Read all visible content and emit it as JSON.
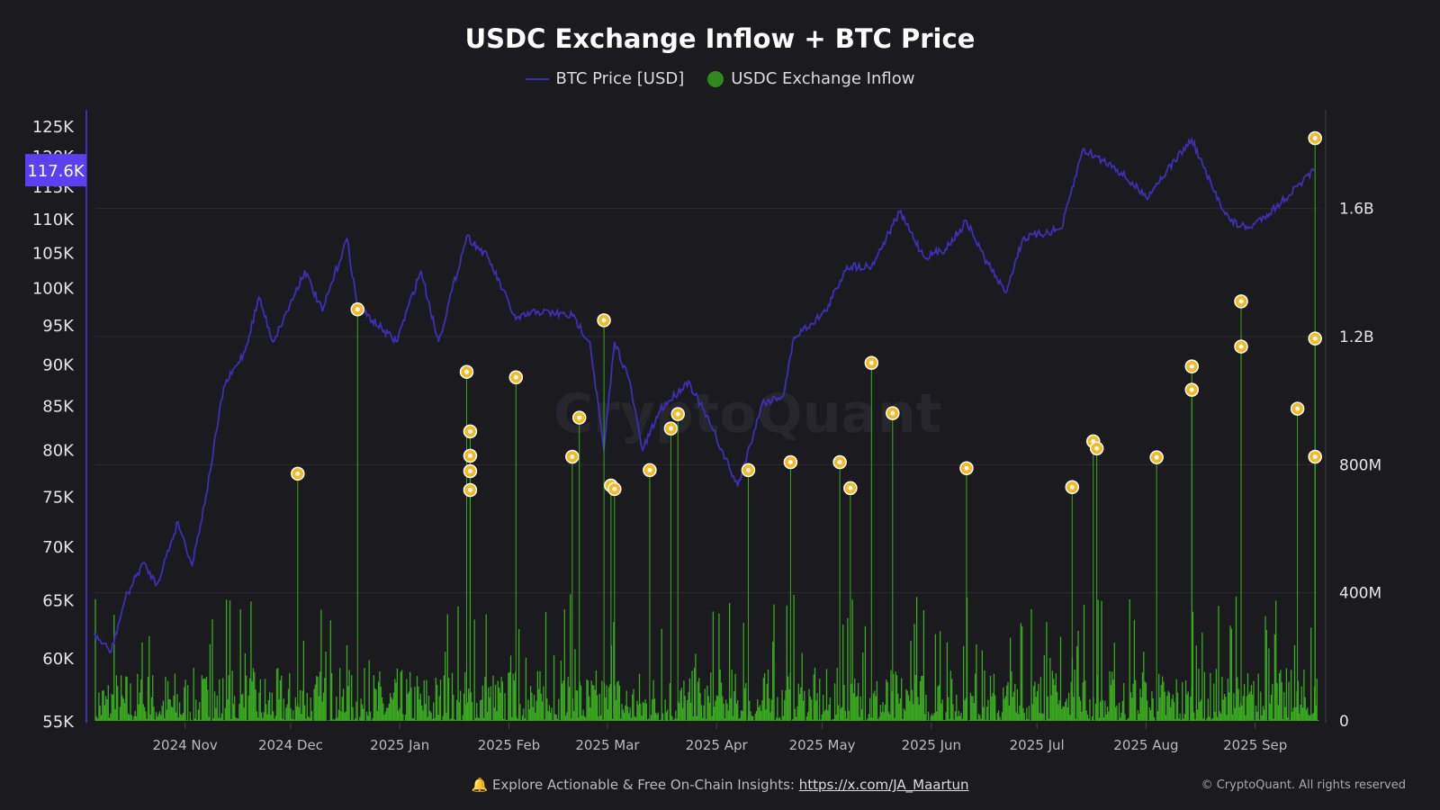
{
  "chart_data": {
    "type": "bar+line",
    "title": "USDC Exchange Inflow + BTC Price",
    "legend": {
      "placement": "top-center",
      "entries": [
        "BTC Price [USD]",
        "USDC Exchange Inflow"
      ]
    },
    "x_ticks": [
      {
        "date": "2024-11-01",
        "label": "2024 Nov"
      },
      {
        "date": "2024-12-01",
        "label": "2024 Dec"
      },
      {
        "date": "2025-01-01",
        "label": "2025 Jan"
      },
      {
        "date": "2025-02-01",
        "label": "2025 Feb"
      },
      {
        "date": "2025-03-01",
        "label": "2025 Mar"
      },
      {
        "date": "2025-04-01",
        "label": "2025 Apr"
      },
      {
        "date": "2025-05-01",
        "label": "2025 May"
      },
      {
        "date": "2025-06-01",
        "label": "2025 Jun"
      },
      {
        "date": "2025-07-01",
        "label": "2025 Jul"
      },
      {
        "date": "2025-08-01",
        "label": "2025 Aug"
      },
      {
        "date": "2025-09-01",
        "label": "2025 Sep"
      }
    ],
    "xlim": [
      "2024-10-05",
      "2025-09-20"
    ],
    "left_axis": {
      "scale": "log",
      "ylim": [
        55000,
        125000
      ],
      "ticks": [
        {
          "v": 55000,
          "label": "55K"
        },
        {
          "v": 60000,
          "label": "60K"
        },
        {
          "v": 65000,
          "label": "65K"
        },
        {
          "v": 70000,
          "label": "70K"
        },
        {
          "v": 75000,
          "label": "75K"
        },
        {
          "v": 80000,
          "label": "80K"
        },
        {
          "v": 85000,
          "label": "85K"
        },
        {
          "v": 90000,
          "label": "90K"
        },
        {
          "v": 95000,
          "label": "95K"
        },
        {
          "v": 100000,
          "label": "100K"
        },
        {
          "v": 105000,
          "label": "105K"
        },
        {
          "v": 110000,
          "label": "110K"
        },
        {
          "v": 115000,
          "label": "115K"
        },
        {
          "v": 120000,
          "label": "120K"
        },
        {
          "v": 125000,
          "label": "125K"
        }
      ],
      "current_value": 117600,
      "current_label": "117.6K"
    },
    "right_axis": {
      "scale": "linear",
      "ylim": [
        0,
        1900000000
      ],
      "ticks": [
        {
          "v": 0,
          "label": "0"
        },
        {
          "v": 400000000,
          "label": "400M"
        },
        {
          "v": 800000000,
          "label": "800M"
        },
        {
          "v": 1200000000,
          "label": "1.2B"
        },
        {
          "v": 1600000000,
          "label": "1.6B"
        }
      ]
    },
    "grid": true,
    "colors": {
      "btc": "#3f2fb5",
      "inflow": "#3aaa1e",
      "marker": "#f5b921",
      "current_badge": "#5b3ff0"
    },
    "btc_price": [
      [
        "2024-10-06",
        62000
      ],
      [
        "2024-10-11",
        60500
      ],
      [
        "2024-10-15",
        65100
      ],
      [
        "2024-10-20",
        68400
      ],
      [
        "2024-10-24",
        66400
      ],
      [
        "2024-10-30",
        72400
      ],
      [
        "2024-11-03",
        68200
      ],
      [
        "2024-11-07",
        75100
      ],
      [
        "2024-11-12",
        87200
      ],
      [
        "2024-11-18",
        91600
      ],
      [
        "2024-11-22",
        98700
      ],
      [
        "2024-11-26",
        92800
      ],
      [
        "2024-11-30",
        96800
      ],
      [
        "2024-12-05",
        102400
      ],
      [
        "2024-12-10",
        96800
      ],
      [
        "2024-12-17",
        107000
      ],
      [
        "2024-12-20",
        97400
      ],
      [
        "2024-12-31",
        92800
      ],
      [
        "2025-01-07",
        102400
      ],
      [
        "2025-01-12",
        92800
      ],
      [
        "2025-01-20",
        107400
      ],
      [
        "2025-01-26",
        104300
      ],
      [
        "2025-02-03",
        95700
      ],
      [
        "2025-02-09",
        96800
      ],
      [
        "2025-02-19",
        96200
      ],
      [
        "2025-02-24",
        92800
      ],
      [
        "2025-02-28",
        79900
      ],
      [
        "2025-03-03",
        92800
      ],
      [
        "2025-03-07",
        88300
      ],
      [
        "2025-03-11",
        79900
      ],
      [
        "2025-03-16",
        84500
      ],
      [
        "2025-03-24",
        87900
      ],
      [
        "2025-03-30",
        83000
      ],
      [
        "2025-04-07",
        76000
      ],
      [
        "2025-04-14",
        85300
      ],
      [
        "2025-04-20",
        86200
      ],
      [
        "2025-04-23",
        93400
      ],
      [
        "2025-05-02",
        96800
      ],
      [
        "2025-05-08",
        103000
      ],
      [
        "2025-05-15",
        103000
      ],
      [
        "2025-05-23",
        111000
      ],
      [
        "2025-05-30",
        104300
      ],
      [
        "2025-06-05",
        105500
      ],
      [
        "2025-06-11",
        109600
      ],
      [
        "2025-06-16",
        104300
      ],
      [
        "2025-06-22",
        99300
      ],
      [
        "2025-06-27",
        107000
      ],
      [
        "2025-07-08",
        108500
      ],
      [
        "2025-07-14",
        121000
      ],
      [
        "2025-07-23",
        118200
      ],
      [
        "2025-08-01",
        113300
      ],
      [
        "2025-08-07",
        117600
      ],
      [
        "2025-08-14",
        122700
      ],
      [
        "2025-08-20",
        114500
      ],
      [
        "2025-08-25",
        109600
      ],
      [
        "2025-08-30",
        108500
      ],
      [
        "2025-09-07",
        111800
      ],
      [
        "2025-09-13",
        115000
      ],
      [
        "2025-09-18",
        117600
      ]
    ],
    "inflow_spikes": [
      [
        "2024-12-03",
        772000000
      ],
      [
        "2024-12-20",
        1285000000
      ],
      [
        "2025-01-20",
        1090000000
      ],
      [
        "2025-01-21",
        904000000
      ],
      [
        "2025-01-21",
        828000000
      ],
      [
        "2025-01-21",
        780000000
      ],
      [
        "2025-01-21",
        721000000
      ],
      [
        "2025-02-03",
        1073000000
      ],
      [
        "2025-02-19",
        825000000
      ],
      [
        "2025-02-21",
        947000000
      ],
      [
        "2025-02-28",
        1251000000
      ],
      [
        "2025-03-02",
        735000000
      ],
      [
        "2025-03-03",
        724000000
      ],
      [
        "2025-03-13",
        783000000
      ],
      [
        "2025-03-19",
        913000000
      ],
      [
        "2025-03-21",
        958000000
      ],
      [
        "2025-04-10",
        783000000
      ],
      [
        "2025-04-22",
        808000000
      ],
      [
        "2025-05-06",
        808000000
      ],
      [
        "2025-05-09",
        727000000
      ],
      [
        "2025-05-15",
        1118000000
      ],
      [
        "2025-05-21",
        961000000
      ],
      [
        "2025-06-11",
        789000000
      ],
      [
        "2025-07-11",
        730000000
      ],
      [
        "2025-07-17",
        873000000
      ],
      [
        "2025-07-18",
        851000000
      ],
      [
        "2025-08-04",
        823000000
      ],
      [
        "2025-08-14",
        1107000000
      ],
      [
        "2025-08-14",
        1034000000
      ],
      [
        "2025-08-28",
        1310000000
      ],
      [
        "2025-08-28",
        1169000000
      ],
      [
        "2025-09-13",
        975000000
      ],
      [
        "2025-09-18",
        1820000000
      ],
      [
        "2025-09-18",
        1194000000
      ],
      [
        "2025-09-18",
        825000000
      ]
    ]
  },
  "footer": {
    "text": "Explore Actionable & Free On-Chain Insights: ",
    "link": "https://x.com/JA_Maartun",
    "copyright": "© CryptoQuant. All rights reserved"
  },
  "watermark": "CryptoQuant"
}
